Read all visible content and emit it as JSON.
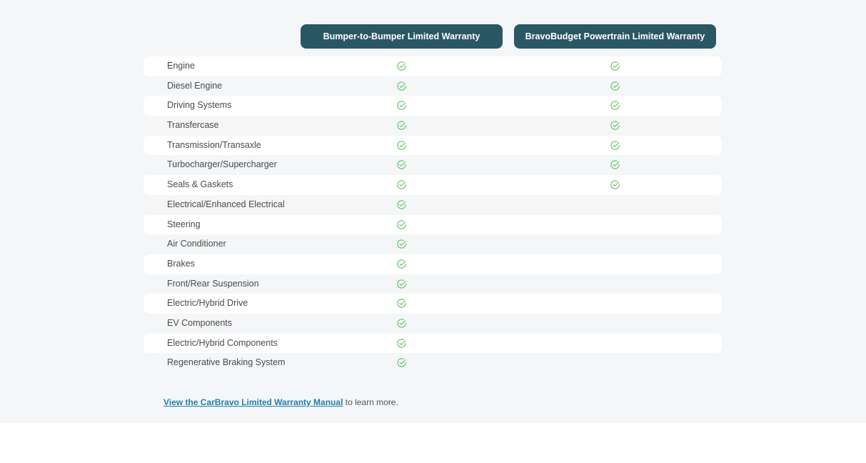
{
  "columns": [
    "Bumper-to-Bumper Limited Warranty",
    "BravoBudget Powertrain Limited Warranty"
  ],
  "check_color": "#6cc46c",
  "header_color": "#2a5764",
  "rows": [
    {
      "label": "Engine",
      "covered": [
        true,
        true
      ]
    },
    {
      "label": "Diesel Engine",
      "covered": [
        true,
        true
      ]
    },
    {
      "label": "Driving Systems",
      "covered": [
        true,
        true
      ]
    },
    {
      "label": "Transfercase",
      "covered": [
        true,
        true
      ]
    },
    {
      "label": "Transmission/Transaxle",
      "covered": [
        true,
        true
      ]
    },
    {
      "label": "Turbocharger/Supercharger",
      "covered": [
        true,
        true
      ]
    },
    {
      "label": "Seals & Gaskets",
      "covered": [
        true,
        true
      ]
    },
    {
      "label": "Electrical/Enhanced Electrical",
      "covered": [
        true,
        false
      ]
    },
    {
      "label": "Steering",
      "covered": [
        true,
        false
      ]
    },
    {
      "label": "Air Conditioner",
      "covered": [
        true,
        false
      ]
    },
    {
      "label": "Brakes",
      "covered": [
        true,
        false
      ]
    },
    {
      "label": "Front/Rear Suspension",
      "covered": [
        true,
        false
      ]
    },
    {
      "label": "Electric/Hybrid Drive",
      "covered": [
        true,
        false
      ]
    },
    {
      "label": "EV Components",
      "covered": [
        true,
        false
      ]
    },
    {
      "label": "Electric/Hybrid Components",
      "covered": [
        true,
        false
      ]
    },
    {
      "label": "Regenerative Braking System",
      "covered": [
        true,
        false
      ]
    }
  ],
  "footer": {
    "link": "View the CarBravo Limited Warranty Manual",
    "text": " to learn more."
  }
}
